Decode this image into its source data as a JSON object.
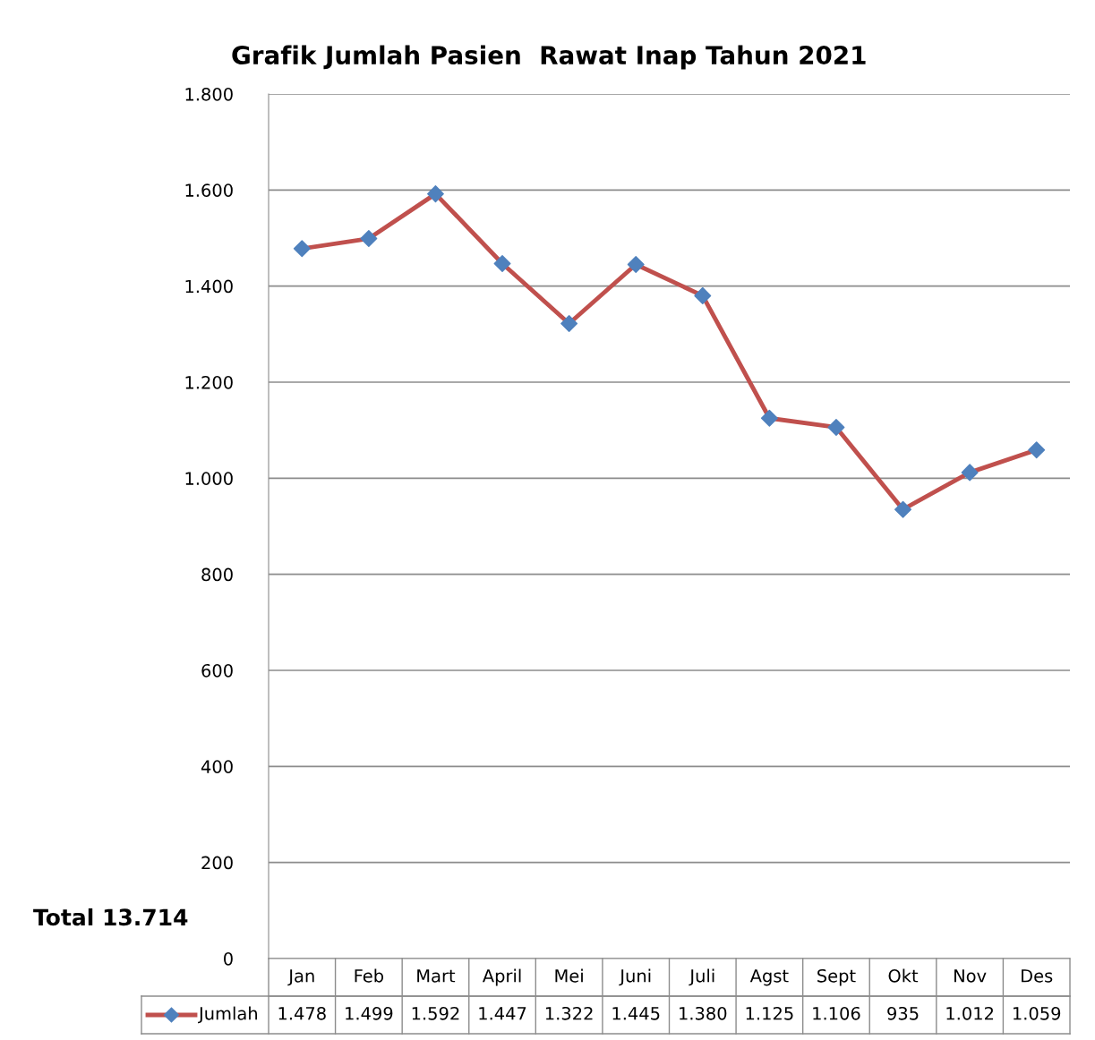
{
  "chart_data": {
    "type": "line",
    "title": "Grafik Jumlah Pasien  Rawat Inap Tahun 2021",
    "categories": [
      "Jan",
      "Feb",
      "Mart",
      "April",
      "Mei",
      "Juni",
      "Juli",
      "Agst",
      "Sept",
      "Okt",
      "Nov",
      "Des"
    ],
    "series": [
      {
        "name": "Jumlah",
        "color": "#c0504d",
        "colors": [
          "#4f81bd",
          "#4f81bd",
          "#4f81bd",
          "#4f81bd",
          "#4f81bd",
          "#4f81bd",
          "#4f81bd",
          "#4f81bd",
          "#4f81bd",
          "#4f81bd",
          "#4f81bd",
          "#4f81bd"
        ],
        "values": [
          1478,
          1499,
          1592,
          1447,
          1322,
          1445,
          1380,
          1125,
          1106,
          935,
          1012,
          1059
        ],
        "value_labels": [
          "1.478",
          "1.499",
          "1.592",
          "1.447",
          "1.322",
          "1.445",
          "1.380",
          "1.125",
          "1.106",
          "935",
          "1.012",
          "1.059"
        ]
      }
    ],
    "ylim": [
      0,
      1800
    ],
    "yticks": [
      {
        "value": 0,
        "label": "0"
      },
      {
        "value": 200,
        "label": "200"
      },
      {
        "value": 400,
        "label": "400"
      },
      {
        "value": 600,
        "label": "600"
      },
      {
        "value": 800,
        "label": "800"
      },
      {
        "value": 1000,
        "label": "1.000"
      },
      {
        "value": 1200,
        "label": "1.200"
      },
      {
        "value": 1400,
        "label": "1.400"
      },
      {
        "value": 1600,
        "label": "1.600"
      },
      {
        "value": 1800,
        "label": "1.800"
      }
    ],
    "grid": "y",
    "legend": "bottom",
    "marker": "diamond",
    "line_style": "solid",
    "annotations": [
      "Total 13.714"
    ]
  }
}
